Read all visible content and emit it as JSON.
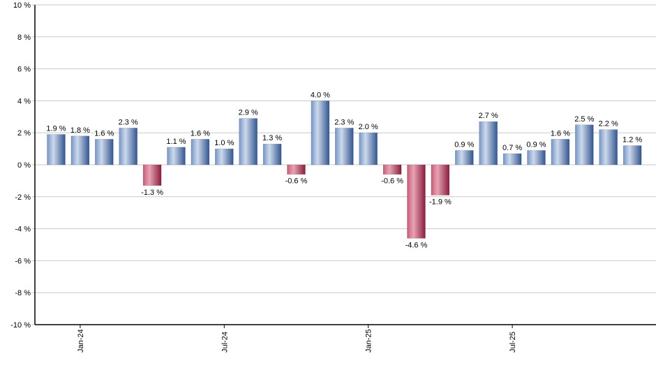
{
  "chart_data": {
    "type": "bar",
    "title": "",
    "xlabel": "",
    "ylabel": "",
    "values": [
      1.9,
      1.8,
      1.6,
      2.3,
      -1.3,
      1.1,
      1.6,
      1.0,
      2.9,
      1.3,
      -0.6,
      4.0,
      2.3,
      2.0,
      -0.6,
      -4.6,
      -1.9,
      0.9,
      2.7,
      0.7,
      0.9,
      1.6,
      2.5,
      2.2,
      1.2
    ],
    "value_label_suffix": " %",
    "x_ticks": [
      {
        "index": 1,
        "label": "Jan-24"
      },
      {
        "index": 7,
        "label": "Jul-24"
      },
      {
        "index": 13,
        "label": "Jan-25"
      },
      {
        "index": 19,
        "label": "Jul-25"
      }
    ],
    "y_ticks": [
      10,
      8,
      6,
      4,
      2,
      0,
      -2,
      -4,
      -6,
      -8,
      -10
    ],
    "y_tick_suffix": " %",
    "ylim": [
      -10,
      10
    ],
    "grid": true,
    "legend": "none",
    "colors": {
      "positive_gradient": [
        "#6f90c1",
        "#8aa5cf",
        "#cdd9ec",
        "#32558f"
      ],
      "negative_gradient": [
        "#c14f6b",
        "#cf6f87",
        "#e7a3b3",
        "#8a1c3e"
      ],
      "gridline": "#c9c9c9",
      "axis": "#000000",
      "label_text": "#000000",
      "background": "#ffffff"
    }
  }
}
